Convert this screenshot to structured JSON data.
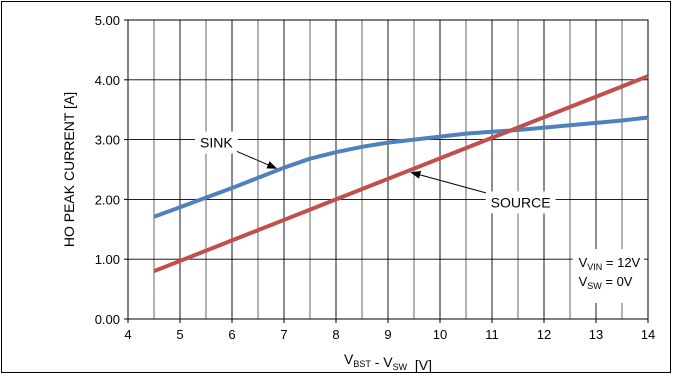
{
  "chart_data": {
    "type": "line",
    "xlabel": {
      "parts": [
        {
          "text": "V",
          "sub": "BST"
        },
        {
          "text": " - V",
          "sub": "SW"
        },
        {
          "text": "  [V]",
          "sub": ""
        }
      ]
    },
    "ylabel": "HO PEAK CURRENT [A]",
    "xlim": [
      4,
      14
    ],
    "ylim": [
      0,
      5
    ],
    "x_ticks": [
      4,
      5,
      6,
      7,
      8,
      9,
      10,
      11,
      12,
      13,
      14
    ],
    "x_tick_labels": [
      "4",
      "5",
      "6",
      "7",
      "8",
      "9",
      "10",
      "11",
      "12",
      "13",
      "14"
    ],
    "y_ticks": [
      0,
      1,
      2,
      3,
      4,
      5
    ],
    "y_tick_labels": [
      "0.00",
      "1.00",
      "2.00",
      "3.00",
      "4.00",
      "5.00"
    ],
    "grid": true,
    "minor_grid_x": true,
    "series": [
      {
        "name": "SINK",
        "color": "#4f81bd",
        "x": [
          4.5,
          5.0,
          5.5,
          6.0,
          6.5,
          7.0,
          7.5,
          8.0,
          8.5,
          9.0,
          9.5,
          10.0,
          10.5,
          11.0,
          11.5,
          12.0,
          12.5,
          13.0,
          13.5,
          14.0
        ],
        "y": [
          1.71,
          1.87,
          2.03,
          2.19,
          2.36,
          2.53,
          2.68,
          2.79,
          2.88,
          2.95,
          3.0,
          3.05,
          3.1,
          3.13,
          3.16,
          3.2,
          3.24,
          3.28,
          3.32,
          3.37
        ]
      },
      {
        "name": "SOURCE",
        "color": "#c0504d",
        "x": [
          4.5,
          14.0
        ],
        "y": [
          0.8,
          4.06
        ]
      }
    ],
    "annotations": [
      {
        "text": "SINK",
        "series": "SINK",
        "arrow_to": [
          6.85,
          2.52
        ],
        "label_at": [
          5.7,
          2.95
        ]
      },
      {
        "text": "SOURCE",
        "series": "SOURCE",
        "arrow_to": [
          9.45,
          2.45
        ],
        "label_at": [
          11.55,
          1.95
        ]
      }
    ],
    "conditions": [
      {
        "main": "V",
        "sub": "VIN",
        "rest": " = 12V"
      },
      {
        "main": "V",
        "sub": "SW",
        "rest": " = 0V"
      }
    ]
  }
}
